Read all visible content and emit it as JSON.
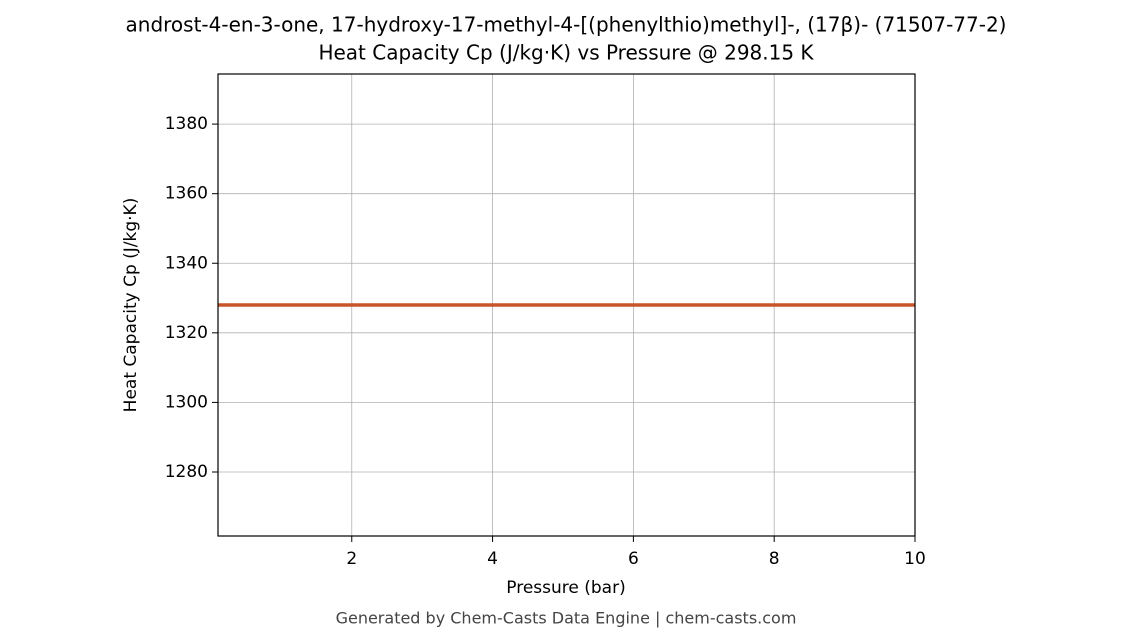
{
  "chart_data": {
    "type": "line",
    "title": "androst-4-en-3-one, 17-hydroxy-17-methyl-4-[(phenylthio)methyl]-, (17β)- (71507-77-2)",
    "subtitle": "Heat Capacity Cp (J/kg·K) vs Pressure @ 298.15 K",
    "x_label": "Pressure (bar)",
    "y_label": "Heat Capacity Cp (J/kg·K)",
    "footer": "Generated by Chem-Casts Data Engine | chem-casts.com",
    "x": [
      0.1,
      10
    ],
    "series": [
      {
        "name": "Heat Capacity Cp",
        "color": "#c8552a",
        "values": [
          1328,
          1328
        ]
      }
    ],
    "xlim": [
      0.1,
      10
    ],
    "xticks": [
      2,
      4,
      6,
      8,
      10
    ],
    "ylim": [
      1261.6,
      1394.4
    ],
    "yticks": [
      1280,
      1300,
      1320,
      1340,
      1360,
      1380
    ],
    "grid": true
  }
}
